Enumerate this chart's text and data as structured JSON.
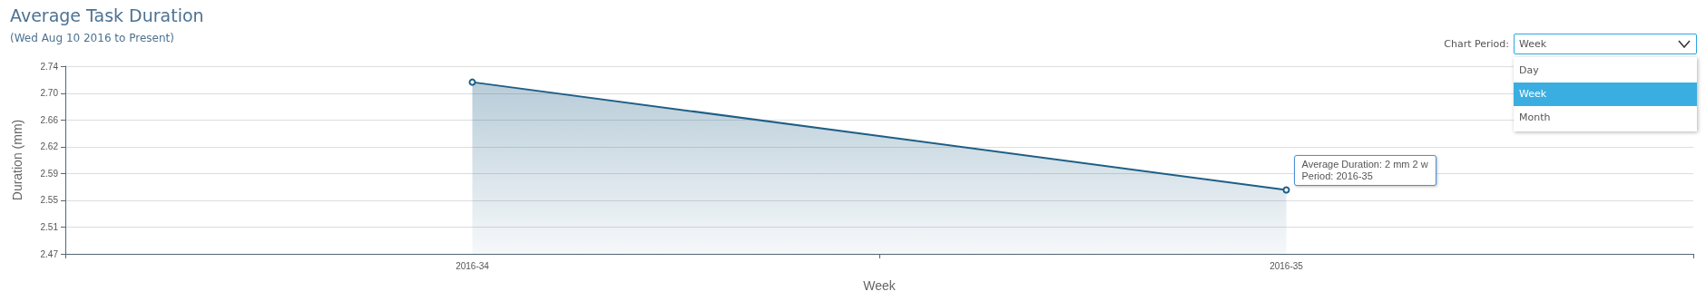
{
  "chart_data": {
    "type": "area",
    "title": "Average Task Duration",
    "subtitle": "(Wed Aug 10 2016 to Present)",
    "xlabel": "Week",
    "ylabel": "Duration (mm)",
    "categories": [
      "2016-34",
      "2016-35"
    ],
    "series": [
      {
        "color": "#1f5f85",
        "values": [
          2.717,
          2.562
        ]
      }
    ],
    "ylim": [
      2.47,
      2.74
    ],
    "yticks": [
      2.47,
      {
        "value": 2.509,
        "label": "2.51"
      },
      {
        "value": 2.547,
        "label": "2.55"
      },
      {
        "value": 2.586,
        "label": "2.59"
      },
      {
        "value": 2.624,
        "label": "2.62"
      },
      {
        "value": 2.663,
        "label": "2.66"
      },
      {
        "value": 2.701,
        "label": "2.70"
      },
      2.74
    ],
    "grid": "y",
    "marker": "circle",
    "annotations": [
      {
        "text": "Average Duration: 2 mm 2 w\nPeriod: 2016-35",
        "x": "2016-35",
        "y": 2.562
      },
      "Chart Period:",
      "Week",
      "Day",
      "Week",
      "Month"
    ]
  }
}
